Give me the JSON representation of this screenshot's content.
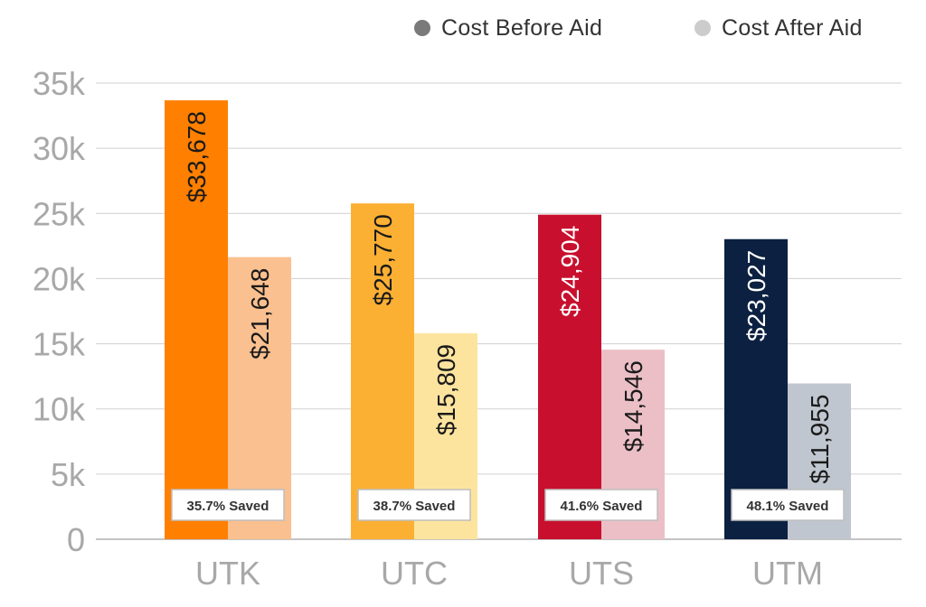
{
  "legend": {
    "before": {
      "label": "Cost Before Aid",
      "color": "#7a7a7a"
    },
    "after": {
      "label": "Cost After Aid",
      "color": "#cccccc"
    }
  },
  "chart_data": {
    "type": "bar",
    "categories": [
      "UTK",
      "UTC",
      "UTS",
      "UTM"
    ],
    "series": [
      {
        "name": "Cost Before Aid",
        "values": [
          33678,
          25770,
          24904,
          23027
        ]
      },
      {
        "name": "Cost After Aid",
        "values": [
          21648,
          15809,
          14546,
          11955
        ]
      }
    ],
    "value_labels": {
      "before": [
        "$33,678",
        "$25,770",
        "$24,904",
        "$23,027"
      ],
      "after": [
        "$21,648",
        "$15,809",
        "$14,546",
        "$11,955"
      ]
    },
    "saved_labels": [
      "35.7% Saved",
      "38.7% Saved",
      "41.6% Saved",
      "48.1% Saved"
    ],
    "colors": {
      "before": [
        "#ff7f00",
        "#fbb034",
        "#c8102e",
        "#0c2141"
      ],
      "after": [
        "#fac08f",
        "#fde49e",
        "#ecbfc7",
        "#c0c6cf"
      ]
    },
    "label_colors": {
      "before": [
        "#1a1a1a",
        "#1a1a1a",
        "#ffffff",
        "#ffffff"
      ],
      "after": [
        "#1a1a1a",
        "#1a1a1a",
        "#1a1a1a",
        "#1a1a1a"
      ]
    },
    "yticks": [
      0,
      5000,
      10000,
      15000,
      20000,
      25000,
      30000,
      35000
    ],
    "ytick_labels": [
      "0",
      "5k",
      "10k",
      "15k",
      "20k",
      "25k",
      "30k",
      "35k"
    ],
    "ylim": [
      0,
      35000
    ],
    "grid": true,
    "legend_position": "top-right",
    "title": "",
    "xlabel": "",
    "ylabel": ""
  }
}
